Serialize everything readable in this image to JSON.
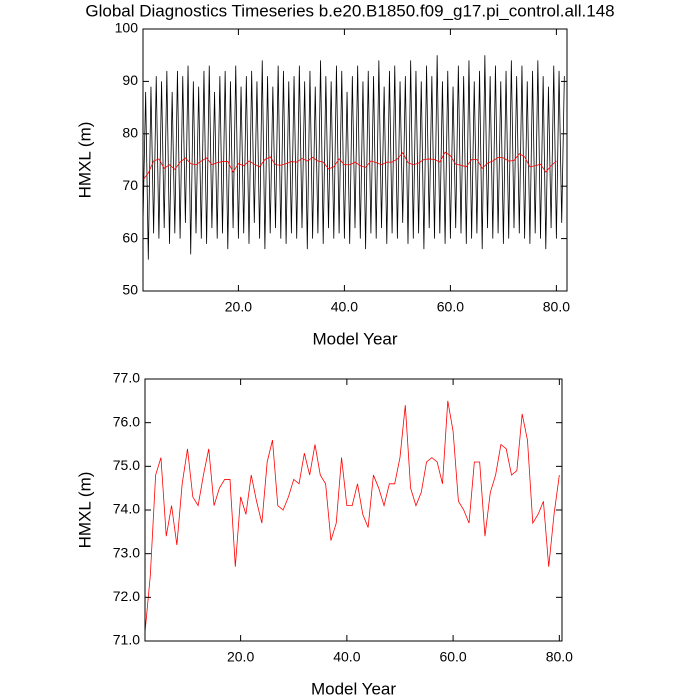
{
  "chart_data": [
    {
      "type": "line",
      "title": "Global Diagnostics Timeseries b.e20.B1850.f09_g17.pi_control.all.148",
      "xlabel": "Model Year",
      "ylabel": "HMXL (m)",
      "xlim": [
        2,
        82
      ],
      "ylim": [
        50,
        100
      ],
      "xticks": [
        {
          "value": 20,
          "label": "20.0"
        },
        {
          "value": 40,
          "label": "40.0"
        },
        {
          "value": 60,
          "label": "60.0"
        },
        {
          "value": 80,
          "label": "80.0"
        }
      ],
      "yticks": [
        50,
        60,
        70,
        80,
        90,
        100
      ],
      "series": [
        {
          "color": "#000000",
          "x": [
            2,
            2.5,
            3,
            3.5,
            4,
            4.5,
            5,
            5.5,
            6,
            6.5,
            7,
            7.5,
            8,
            8.5,
            9,
            9.5,
            10,
            10.5,
            11,
            11.5,
            12,
            12.5,
            13,
            13.5,
            14,
            14.5,
            15,
            15.5,
            16,
            16.5,
            17,
            17.5,
            18,
            18.5,
            19,
            19.5,
            20,
            20.5,
            21,
            21.5,
            22,
            22.5,
            23,
            23.5,
            24,
            24.5,
            25,
            25.5,
            26,
            26.5,
            27,
            27.5,
            28,
            28.5,
            29,
            29.5,
            30,
            30.5,
            31,
            31.5,
            32,
            32.5,
            33,
            33.5,
            34,
            34.5,
            35,
            35.5,
            36,
            36.5,
            37,
            37.5,
            38,
            38.5,
            39,
            39.5,
            40,
            40.5,
            41,
            41.5,
            42,
            42.5,
            43,
            43.5,
            44,
            44.5,
            45,
            45.5,
            46,
            46.5,
            47,
            47.5,
            48,
            48.5,
            49,
            49.5,
            50,
            50.5,
            51,
            51.5,
            52,
            52.5,
            53,
            53.5,
            54,
            54.5,
            55,
            55.5,
            56,
            56.5,
            57,
            57.5,
            58,
            58.5,
            59,
            59.5,
            60,
            60.5,
            61,
            61.5,
            62,
            62.5,
            63,
            63.5,
            64,
            64.5,
            65,
            65.5,
            66,
            66.5,
            67,
            67.5,
            68,
            68.5,
            69,
            69.5,
            70,
            70.5,
            71,
            71.5,
            72,
            72.5,
            73,
            73.5,
            74,
            74.5,
            75,
            75.5,
            76,
            76.5,
            77,
            77.5,
            78,
            78.5,
            79,
            79.5,
            80,
            80.5,
            81,
            81.5
          ],
          "values": [
            63,
            88,
            56,
            89,
            61,
            91,
            60,
            90,
            62,
            92,
            59,
            88,
            61,
            92,
            60,
            91,
            63,
            93,
            57,
            90,
            61,
            89,
            60,
            92,
            59,
            93,
            62,
            88,
            60,
            91,
            61,
            92,
            58,
            90,
            62,
            93,
            60,
            89,
            61,
            91,
            59,
            92,
            63,
            90,
            60,
            94,
            58,
            91,
            61,
            89,
            62,
            93,
            60,
            92,
            59,
            90,
            61,
            91,
            60,
            93,
            62,
            90,
            58,
            92,
            60,
            89,
            61,
            94,
            59,
            91,
            62,
            90,
            60,
            93,
            61,
            92,
            60,
            88,
            59,
            91,
            62,
            93,
            60,
            90,
            58,
            92,
            61,
            91,
            60,
            94,
            62,
            89,
            59,
            92,
            61,
            93,
            60,
            90,
            63,
            91,
            59,
            94,
            60,
            92,
            61,
            90,
            58,
            93,
            62,
            91,
            60,
            95,
            61,
            90,
            59,
            92,
            60,
            89,
            62,
            93,
            61,
            91,
            59,
            94,
            60,
            90,
            61,
            92,
            58,
            95,
            62,
            91,
            60,
            93,
            61,
            90,
            59,
            92,
            60,
            94,
            62,
            91,
            61,
            93,
            60,
            90,
            59,
            92,
            61,
            94,
            60,
            91,
            58,
            89,
            62,
            93,
            60,
            92,
            63,
            91
          ]
        },
        {
          "color": "#ff0000",
          "x": [
            2,
            3,
            4,
            5,
            6,
            7,
            8,
            9,
            10,
            11,
            12,
            13,
            14,
            15,
            16,
            17,
            18,
            19,
            20,
            21,
            22,
            23,
            24,
            25,
            26,
            27,
            28,
            29,
            30,
            31,
            32,
            33,
            34,
            35,
            36,
            37,
            38,
            39,
            40,
            41,
            42,
            43,
            44,
            45,
            46,
            47,
            48,
            49,
            50,
            51,
            52,
            53,
            54,
            55,
            56,
            57,
            58,
            59,
            60,
            61,
            62,
            63,
            64,
            65,
            66,
            67,
            68,
            69,
            70,
            71,
            72,
            73,
            74,
            75,
            76,
            77,
            78,
            79,
            80
          ],
          "values": [
            71.2,
            72.5,
            74.8,
            75.2,
            73.4,
            74.1,
            73.2,
            74.6,
            75.4,
            74.3,
            74.1,
            74.8,
            75.4,
            74.1,
            74.5,
            74.7,
            74.7,
            72.7,
            74.3,
            73.9,
            74.8,
            74.2,
            73.7,
            75.1,
            75.6,
            74.1,
            74.0,
            74.3,
            74.7,
            74.6,
            75.3,
            74.8,
            75.5,
            74.8,
            74.6,
            73.3,
            73.7,
            75.2,
            74.1,
            74.1,
            74.6,
            73.9,
            73.6,
            74.8,
            74.5,
            74.1,
            74.6,
            74.6,
            75.2,
            76.4,
            74.5,
            74.1,
            74.4,
            75.1,
            75.2,
            75.1,
            74.6,
            76.5,
            75.8,
            74.2,
            74.0,
            73.7,
            75.1,
            75.1,
            73.4,
            74.4,
            74.8,
            75.5,
            75.4,
            74.8,
            74.9,
            76.2,
            75.6,
            73.7,
            73.9,
            74.2,
            72.7,
            73.9,
            74.8
          ]
        }
      ]
    },
    {
      "type": "line",
      "xlabel": "Model Year",
      "ylabel": "HMXL (m)",
      "xlim": [
        2,
        80.5
      ],
      "ylim": [
        71,
        77
      ],
      "xticks": [
        {
          "value": 20,
          "label": "20.0"
        },
        {
          "value": 40,
          "label": "40.0"
        },
        {
          "value": 60,
          "label": "60.0"
        },
        {
          "value": 80,
          "label": "80.0"
        }
      ],
      "yticks": [
        {
          "value": 71,
          "label": "71.0"
        },
        {
          "value": 72,
          "label": "72.0"
        },
        {
          "value": 73,
          "label": "73.0"
        },
        {
          "value": 74,
          "label": "74.0"
        },
        {
          "value": 75,
          "label": "75.0"
        },
        {
          "value": 76,
          "label": "76.0"
        },
        {
          "value": 77,
          "label": "77.0"
        }
      ],
      "series": [
        {
          "color": "#ff0000",
          "x": [
            2,
            3,
            4,
            5,
            6,
            7,
            8,
            9,
            10,
            11,
            12,
            13,
            14,
            15,
            16,
            17,
            18,
            19,
            20,
            21,
            22,
            23,
            24,
            25,
            26,
            27,
            28,
            29,
            30,
            31,
            32,
            33,
            34,
            35,
            36,
            37,
            38,
            39,
            40,
            41,
            42,
            43,
            44,
            45,
            46,
            47,
            48,
            49,
            50,
            51,
            52,
            53,
            54,
            55,
            56,
            57,
            58,
            59,
            60,
            61,
            62,
            63,
            64,
            65,
            66,
            67,
            68,
            69,
            70,
            71,
            72,
            73,
            74,
            75,
            76,
            77,
            78,
            79,
            80
          ],
          "values": [
            71.2,
            72.5,
            74.8,
            75.2,
            73.4,
            74.1,
            73.2,
            74.6,
            75.4,
            74.3,
            74.1,
            74.8,
            75.4,
            74.1,
            74.5,
            74.7,
            74.7,
            72.7,
            74.3,
            73.9,
            74.8,
            74.2,
            73.7,
            75.1,
            75.6,
            74.1,
            74.0,
            74.3,
            74.7,
            74.6,
            75.3,
            74.8,
            75.5,
            74.8,
            74.6,
            73.3,
            73.7,
            75.2,
            74.1,
            74.1,
            74.6,
            73.9,
            73.6,
            74.8,
            74.5,
            74.1,
            74.6,
            74.6,
            75.2,
            76.4,
            74.5,
            74.1,
            74.4,
            75.1,
            75.2,
            75.1,
            74.6,
            76.5,
            75.8,
            74.2,
            74.0,
            73.7,
            75.1,
            75.1,
            73.4,
            74.4,
            74.8,
            75.5,
            75.4,
            74.8,
            74.9,
            76.2,
            75.6,
            73.7,
            73.9,
            74.2,
            72.7,
            73.9,
            74.8
          ]
        }
      ]
    }
  ]
}
